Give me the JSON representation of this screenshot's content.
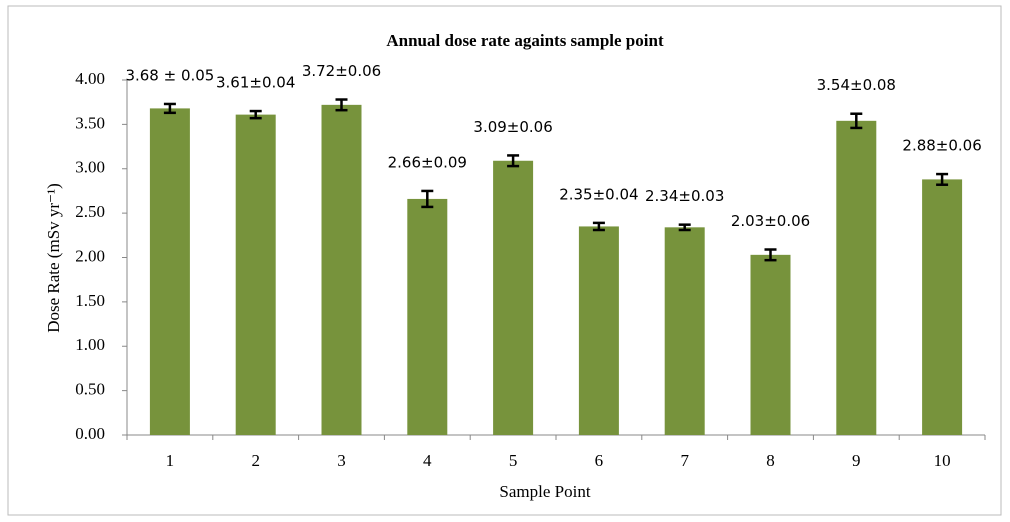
{
  "chart_data": {
    "type": "bar",
    "title": "Annual dose rate againts sample point",
    "xlabel": "Sample Point",
    "ylabel": "Dose Rate (mSv yr⁻¹)",
    "categories": [
      "1",
      "2",
      "3",
      "4",
      "5",
      "6",
      "7",
      "8",
      "9",
      "10"
    ],
    "values": [
      3.68,
      3.61,
      3.72,
      2.66,
      3.09,
      2.35,
      2.34,
      2.03,
      3.54,
      2.88
    ],
    "errors": [
      0.05,
      0.04,
      0.06,
      0.09,
      0.06,
      0.04,
      0.03,
      0.06,
      0.08,
      0.06
    ],
    "value_labels": [
      "3.68 ± 0.05",
      "3.61±0.04",
      "3.72±0.06",
      "2.66±0.09",
      "3.09±0.06",
      "2.35±0.04",
      "2.34±0.03",
      "2.03±0.06",
      "3.54±0.08",
      "2.88±0.06"
    ],
    "color": "#77933c",
    "ylim": [
      0,
      4
    ],
    "yticks": [
      {
        "value": 0,
        "label": "0.00"
      },
      {
        "value": 0.5,
        "label": "0.50"
      },
      {
        "value": 1,
        "label": "1.00"
      },
      {
        "value": 1.5,
        "label": "1.50"
      },
      {
        "value": 2,
        "label": "2.00"
      },
      {
        "value": 2.5,
        "label": "2.50"
      },
      {
        "value": 3,
        "label": "3.00"
      },
      {
        "value": 3.5,
        "label": "3.50"
      },
      {
        "value": 4,
        "label": "4.00"
      }
    ]
  }
}
